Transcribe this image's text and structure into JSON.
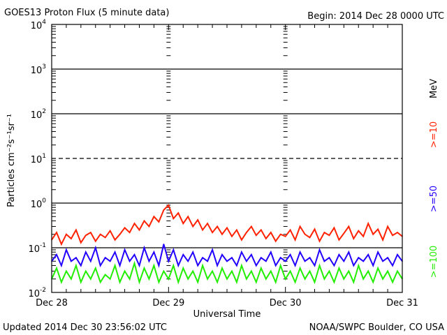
{
  "chart_data": {
    "type": "line",
    "title": "GOES13 Proton Flux (5 minute data)",
    "subtitle": "Begin: 2014 Dec 28 0000 UTC",
    "xlabel": "Universal Time",
    "ylabel": "Particles cm⁻²s⁻¹sr⁻¹",
    "yscale": "log",
    "ylim": [
      0.01,
      10000
    ],
    "y_ticks": [
      {
        "base": "10",
        "exp": "4",
        "value": 10000
      },
      {
        "base": "10",
        "exp": "3",
        "value": 1000
      },
      {
        "base": "10",
        "exp": "2",
        "value": 100
      },
      {
        "base": "10",
        "exp": "1",
        "value": 10
      },
      {
        "base": "10",
        "exp": "0",
        "value": 1
      },
      {
        "base": "10",
        "exp": "-1",
        "value": 0.1
      },
      {
        "base": "10",
        "exp": "-2",
        "value": 0.01
      }
    ],
    "x_ticks": [
      "Dec 28",
      "Dec 29",
      "Dec 30",
      "Dec 31"
    ],
    "x_unit": "hours since 2014 Dec 28 0000 UTC",
    "x_step_hours": 1,
    "xlim": [
      0,
      72
    ],
    "energy_unit": "MeV",
    "series": [
      {
        "name": ">=10",
        "color": "#ff2200",
        "values": [
          0.15,
          0.22,
          0.12,
          0.2,
          0.16,
          0.25,
          0.13,
          0.19,
          0.22,
          0.14,
          0.2,
          0.17,
          0.24,
          0.15,
          0.2,
          0.28,
          0.22,
          0.35,
          0.25,
          0.4,
          0.3,
          0.5,
          0.38,
          0.7,
          0.9,
          0.45,
          0.6,
          0.35,
          0.5,
          0.3,
          0.42,
          0.25,
          0.35,
          0.22,
          0.3,
          0.2,
          0.28,
          0.18,
          0.25,
          0.15,
          0.22,
          0.3,
          0.19,
          0.25,
          0.16,
          0.22,
          0.14,
          0.2,
          0.18,
          0.25,
          0.15,
          0.3,
          0.2,
          0.17,
          0.26,
          0.14,
          0.22,
          0.19,
          0.28,
          0.15,
          0.21,
          0.3,
          0.16,
          0.24,
          0.18,
          0.35,
          0.2,
          0.26,
          0.15,
          0.3,
          0.19,
          0.22,
          0.18
        ]
      },
      {
        "name": ">=50",
        "color": "#2200ff",
        "values": [
          0.05,
          0.07,
          0.04,
          0.09,
          0.05,
          0.06,
          0.04,
          0.08,
          0.05,
          0.1,
          0.04,
          0.06,
          0.05,
          0.08,
          0.04,
          0.09,
          0.05,
          0.07,
          0.04,
          0.1,
          0.05,
          0.08,
          0.04,
          0.12,
          0.05,
          0.09,
          0.04,
          0.07,
          0.05,
          0.08,
          0.04,
          0.06,
          0.05,
          0.09,
          0.04,
          0.07,
          0.05,
          0.06,
          0.04,
          0.08,
          0.05,
          0.07,
          0.04,
          0.06,
          0.05,
          0.08,
          0.04,
          0.06,
          0.05,
          0.07,
          0.04,
          0.08,
          0.05,
          0.06,
          0.04,
          0.09,
          0.05,
          0.06,
          0.04,
          0.07,
          0.05,
          0.08,
          0.04,
          0.06,
          0.05,
          0.07,
          0.04,
          0.08,
          0.05,
          0.06,
          0.04,
          0.07,
          0.05
        ]
      },
      {
        "name": ">=100",
        "color": "#22ee00",
        "values": [
          0.02,
          0.035,
          0.017,
          0.03,
          0.02,
          0.04,
          0.017,
          0.03,
          0.02,
          0.035,
          0.017,
          0.025,
          0.02,
          0.04,
          0.017,
          0.03,
          0.02,
          0.045,
          0.017,
          0.035,
          0.02,
          0.04,
          0.017,
          0.03,
          0.02,
          0.04,
          0.017,
          0.035,
          0.02,
          0.03,
          0.017,
          0.04,
          0.02,
          0.03,
          0.017,
          0.035,
          0.02,
          0.03,
          0.017,
          0.04,
          0.02,
          0.03,
          0.017,
          0.035,
          0.02,
          0.03,
          0.017,
          0.04,
          0.02,
          0.03,
          0.017,
          0.035,
          0.02,
          0.03,
          0.017,
          0.04,
          0.02,
          0.03,
          0.017,
          0.035,
          0.02,
          0.03,
          0.017,
          0.04,
          0.02,
          0.03,
          0.017,
          0.035,
          0.02,
          0.03,
          0.017,
          0.03,
          0.02
        ]
      }
    ],
    "grid": "decade lines",
    "legend": "right, rotated"
  },
  "footer": {
    "updated": "Updated 2014 Dec 30 23:56:02 UTC",
    "credit": "NOAA/SWPC Boulder, CO USA"
  }
}
